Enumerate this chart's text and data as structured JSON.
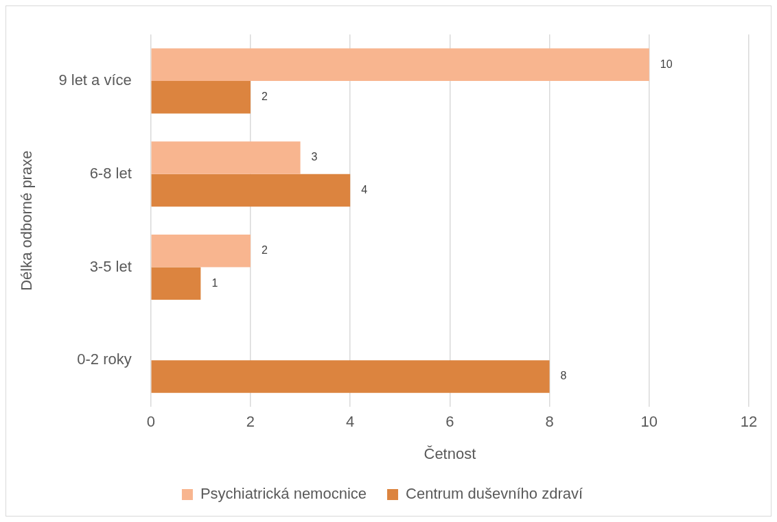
{
  "chart_data": {
    "type": "bar",
    "orientation": "horizontal",
    "xlabel": "Četnost",
    "ylabel": "Délka odborné praxe",
    "categories": [
      "9 let a více",
      "6-8 let",
      "3-5 let",
      "0-2 roky"
    ],
    "series": [
      {
        "name": "Psychiatrická nemocnice",
        "color": "#f8b58f",
        "values": [
          10,
          3,
          2,
          null
        ]
      },
      {
        "name": "Centrum duševního zdraví",
        "color": "#dc843f",
        "values": [
          2,
          4,
          1,
          8
        ]
      }
    ],
    "xlim": [
      0,
      12
    ],
    "xticks": [
      0,
      2,
      4,
      6,
      8,
      10,
      12
    ],
    "grid": "x",
    "legend": "bottom",
    "data_labels": true
  }
}
